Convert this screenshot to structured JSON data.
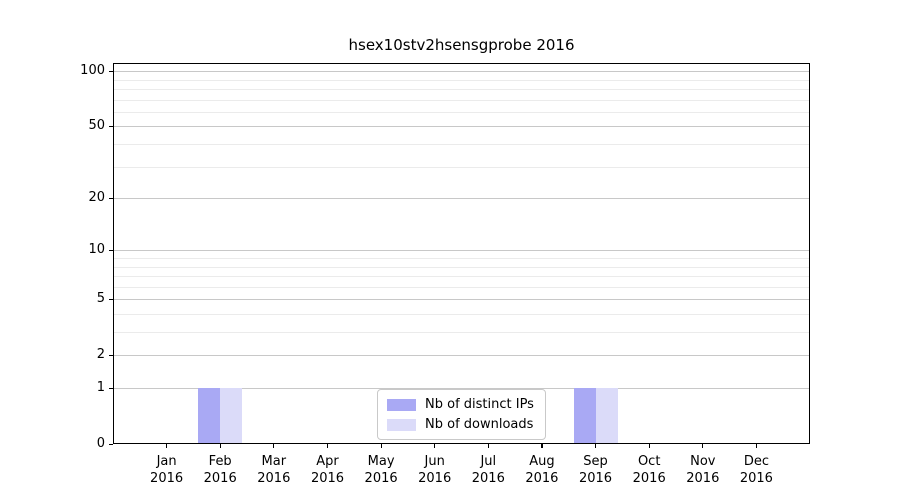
{
  "chart_data": {
    "type": "bar",
    "title": "hsex10stv2hsensgprobe 2016",
    "xlabel": "",
    "ylabel": "",
    "categories": [
      "Jan 2016",
      "Feb 2016",
      "Mar 2016",
      "Apr 2016",
      "May 2016",
      "Jun 2016",
      "Jul 2016",
      "Aug 2016",
      "Sep 2016",
      "Oct 2016",
      "Nov 2016",
      "Dec 2016"
    ],
    "x_tick_months": [
      "Jan",
      "Feb",
      "Mar",
      "Apr",
      "May",
      "Jun",
      "Jul",
      "Aug",
      "Sep",
      "Oct",
      "Nov",
      "Dec"
    ],
    "x_tick_year": "2016",
    "series": [
      {
        "name": "Nb of distinct IPs",
        "color": "#a9a9f4",
        "values": [
          0,
          1,
          0,
          0,
          0,
          0,
          0,
          0,
          1,
          0,
          0,
          0
        ]
      },
      {
        "name": "Nb of downloads",
        "color": "#dbdbf9",
        "values": [
          0,
          1,
          0,
          0,
          0,
          0,
          0,
          0,
          1,
          0,
          0,
          0
        ]
      }
    ],
    "yscale": "log1p",
    "ylim": [
      0,
      110
    ],
    "yticks": [
      0,
      1,
      2,
      5,
      10,
      20,
      50,
      100
    ],
    "yticks_minor": [
      3,
      4,
      6,
      7,
      8,
      9,
      30,
      40,
      60,
      70,
      80,
      90
    ],
    "grid": "horizontal",
    "legend": {
      "position": "lower-center-inside"
    },
    "colors": {
      "major_grid": "#c8c8c8",
      "minor_grid": "#ebebeb",
      "axis": "#000000",
      "background": "#ffffff"
    }
  }
}
